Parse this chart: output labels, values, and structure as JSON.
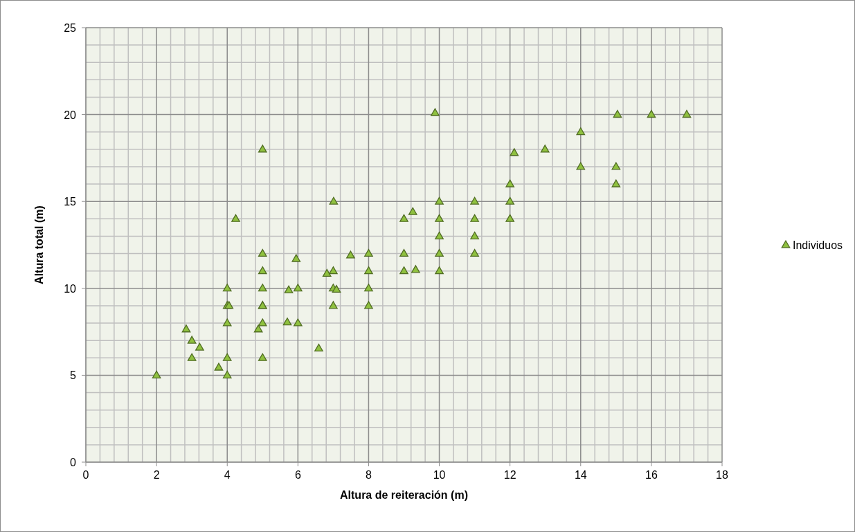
{
  "chart_data": {
    "type": "scatter",
    "xlabel": "Altura de reiteración (m)",
    "ylabel": "Altura total (m)",
    "xlim": [
      0,
      18
    ],
    "xticks": [
      0,
      2,
      4,
      6,
      8,
      10,
      12,
      14,
      16,
      18
    ],
    "ylim": [
      0,
      25
    ],
    "yticks": [
      0,
      5,
      10,
      15,
      20,
      25
    ],
    "grid": true,
    "legend": "right",
    "marker": "triangle",
    "series": [
      {
        "name": "Individuos",
        "color": "#8fc13f",
        "x": [
          2,
          2.84,
          3,
          3.22,
          3,
          3.76,
          4,
          4,
          4.05,
          4,
          4,
          4,
          4.24,
          4.88,
          5,
          5,
          5,
          5,
          5,
          5,
          5,
          5,
          5.7,
          5.74,
          5.95,
          6,
          6,
          6.59,
          6.82,
          7.01,
          7,
          7,
          7,
          7.09,
          7.49,
          8,
          8,
          8,
          8,
          9,
          9,
          9,
          9.25,
          9.33,
          9.88,
          10,
          10,
          10,
          10,
          10,
          11,
          11,
          11,
          11,
          12,
          12,
          12,
          12.12,
          12.99,
          14,
          14,
          15.04,
          15,
          15,
          16,
          17
        ],
        "values": [
          5,
          7.65,
          7,
          6.6,
          6,
          5.45,
          10,
          9,
          9,
          8,
          6,
          5,
          14,
          7.65,
          18,
          12,
          11,
          10,
          9,
          8,
          6,
          9,
          8.05,
          9.9,
          11.7,
          10,
          8,
          6.55,
          10.85,
          15,
          11,
          10,
          9,
          9.93,
          11.9,
          12,
          11,
          10,
          9,
          14,
          12,
          11,
          14.4,
          11.07,
          20.1,
          15,
          14,
          13,
          12,
          11,
          15,
          14,
          13,
          12,
          16,
          15,
          14,
          17.8,
          18,
          19,
          17,
          20,
          17,
          16,
          20,
          20
        ]
      }
    ]
  }
}
